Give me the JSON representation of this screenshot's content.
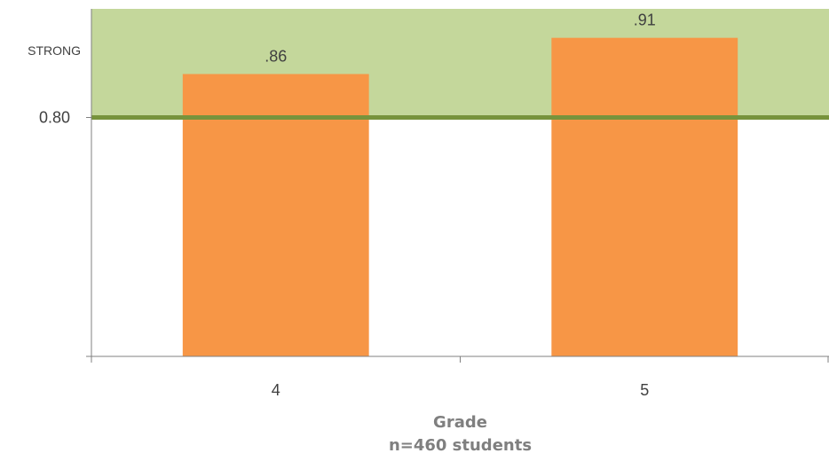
{
  "chart_data": {
    "type": "bar",
    "categories": [
      "4",
      "5"
    ],
    "values": [
      0.86,
      0.91
    ],
    "data_labels": [
      ".86",
      ".91"
    ],
    "title": "",
    "xlabel": "Grade",
    "xlabel_note": "n=460 students",
    "ylabel": "",
    "ylim": [
      0.47,
      0.95
    ],
    "y_tick_labels": [
      {
        "value": 0.8,
        "label": "0.80"
      }
    ],
    "threshold": {
      "value": 0.8,
      "band_label": "STRONG",
      "band_upper": 0.95
    },
    "grid": false,
    "legend": "none",
    "colors": {
      "bar": "#f79646",
      "band_fill": "#c4d79b",
      "threshold_line": "#77933c",
      "axis": "#808080",
      "label_text": "#404040",
      "xlabel_text": "#7f7f7f"
    }
  }
}
